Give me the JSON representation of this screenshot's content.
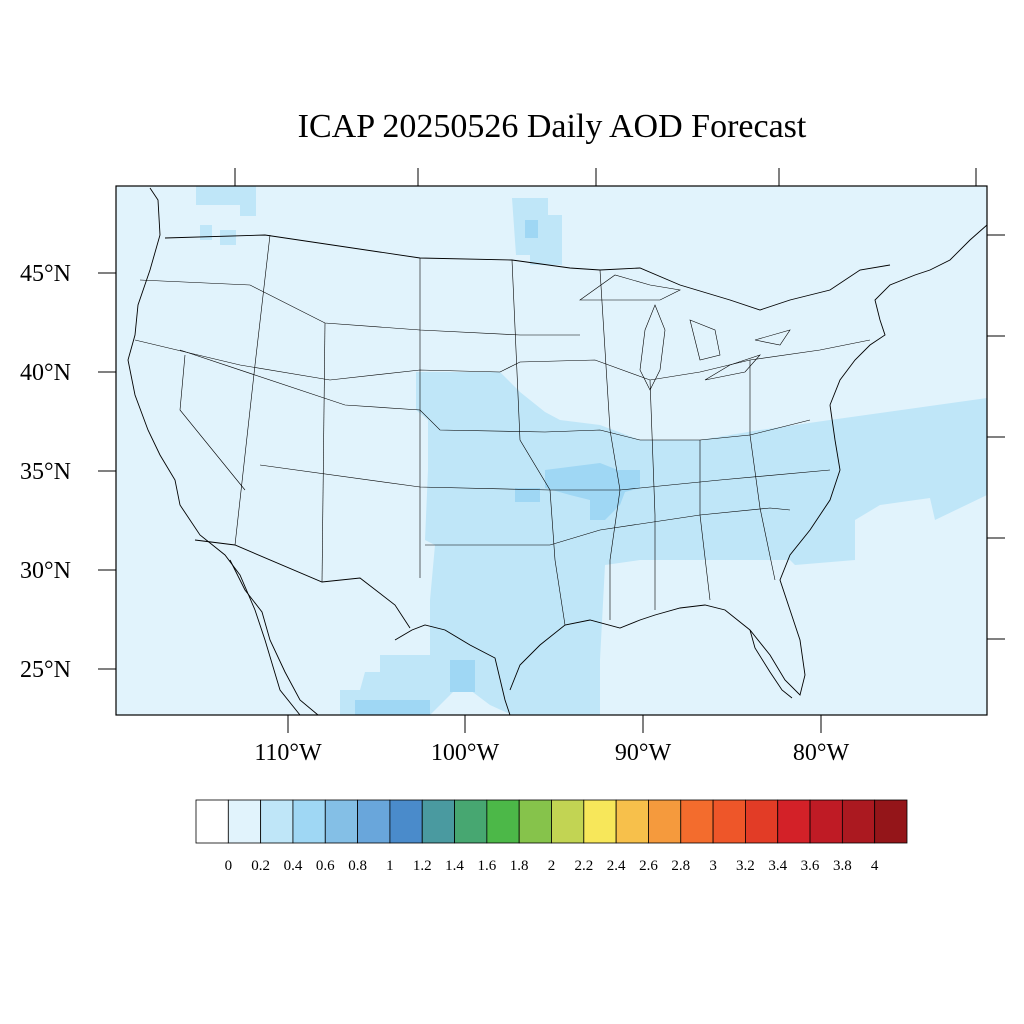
{
  "title": "ICAP 20250526 Daily AOD Forecast",
  "map": {
    "region": "Continental United States",
    "lat_labels": [
      "45°N",
      "40°N",
      "35°N",
      "30°N",
      "25°N"
    ],
    "lat_values": [
      45,
      40,
      35,
      30,
      25
    ],
    "lon_labels": [
      "110°W",
      "100°W",
      "90°W",
      "80°W"
    ],
    "lon_values": [
      -110,
      -100,
      -90,
      -80
    ],
    "background_aod_bin": "0.2-0.4",
    "elevated_aod_regions": [
      {
        "area": "Central Plains (Kansas, Nebraska, Oklahoma)",
        "aod_bin": "0.4-0.6"
      },
      {
        "area": "Texas and northern Mexico",
        "aod_bin": "0.4-0.6"
      },
      {
        "area": "Lower Mississippi Valley / Tennessee",
        "aod_bin": "0.6-0.8"
      },
      {
        "area": "Southeast US and offshore Atlantic band",
        "aod_bin": "0.4-0.6"
      },
      {
        "area": "Minnesota / Lake Superior",
        "aod_bin": "0.6-0.8"
      },
      {
        "area": "Northern Mexico (Coahuila/Chihuahua)",
        "aod_bin": "0.6-0.8"
      }
    ]
  },
  "colorbar": {
    "labels": [
      "0",
      "0.2",
      "0.4",
      "0.6",
      "0.8",
      "1",
      "1.2",
      "1.4",
      "1.6",
      "1.8",
      "2",
      "2.2",
      "2.4",
      "2.6",
      "2.8",
      "3",
      "3.2",
      "3.4",
      "3.6",
      "3.8",
      "4"
    ],
    "colors": [
      "#ffffff",
      "#e1f3fc",
      "#bfe6f8",
      "#9fd7f4",
      "#84bfe6",
      "#69a6db",
      "#4a8bcb",
      "#4a9aa0",
      "#47a771",
      "#4cb848",
      "#86c34b",
      "#c2d453",
      "#f7e75a",
      "#f7c04b",
      "#f59a3d",
      "#f36c2d",
      "#ee5629",
      "#e23c26",
      "#d32128",
      "#bf1b25",
      "#ab1920",
      "#941519"
    ]
  }
}
